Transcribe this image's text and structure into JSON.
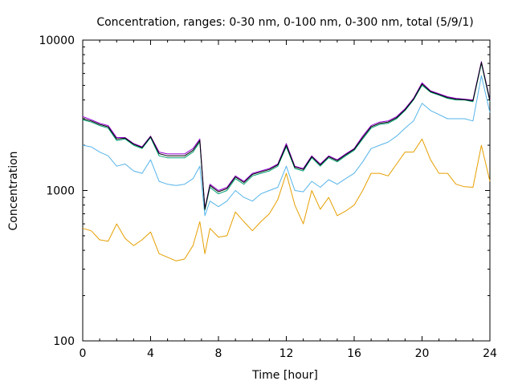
{
  "chart_data": {
    "type": "line",
    "title": "Concentration, ranges: 0-30 nm, 0-100 nm, 0-300 nm, total (5/9/1)",
    "xlabel": "Time [hour]",
    "ylabel": "Concentration",
    "xlim": [
      0,
      24
    ],
    "ylim": [
      100,
      10000
    ],
    "yscale": "log",
    "grid": false,
    "legend": "none",
    "x_ticks": [
      0,
      4,
      8,
      12,
      16,
      20,
      24
    ],
    "x_tick_labels": [
      "0",
      "4",
      "8",
      "12",
      "16",
      "20",
      "24"
    ],
    "y_ticks": [
      100,
      1000,
      10000
    ],
    "y_tick_labels": [
      "100",
      "1000",
      "10000"
    ],
    "x": [
      0.0,
      0.5,
      1.0,
      1.5,
      2.0,
      2.5,
      3.0,
      3.5,
      4.0,
      4.5,
      5.0,
      5.5,
      6.0,
      6.5,
      6.9,
      7.2,
      7.5,
      8.0,
      8.5,
      9.0,
      9.5,
      10.0,
      10.5,
      11.0,
      11.5,
      12.0,
      12.5,
      13.0,
      13.5,
      14.0,
      14.5,
      15.0,
      15.5,
      16.0,
      16.5,
      17.0,
      17.5,
      18.0,
      18.5,
      19.0,
      19.5,
      20.0,
      20.5,
      21.0,
      21.5,
      22.0,
      22.5,
      23.0,
      23.5,
      24.0
    ],
    "series": [
      {
        "color": "#e69f00",
        "values": [
          560,
          540,
          470,
          460,
          600,
          480,
          430,
          470,
          530,
          380,
          360,
          340,
          350,
          430,
          620,
          380,
          560,
          490,
          500,
          720,
          620,
          540,
          620,
          700,
          870,
          1300,
          800,
          600,
          1000,
          750,
          900,
          680,
          730,
          800,
          1000,
          1300,
          1300,
          1250,
          1500,
          1800,
          1800,
          2200,
          1600,
          1300,
          1300,
          1100,
          1060,
          1050,
          2000,
          1150
        ]
      },
      {
        "color": "#56b4e9",
        "values": [
          2000,
          1950,
          1800,
          1700,
          1450,
          1500,
          1350,
          1300,
          1600,
          1150,
          1100,
          1080,
          1100,
          1200,
          1450,
          680,
          850,
          780,
          850,
          1000,
          900,
          850,
          950,
          1000,
          1050,
          1450,
          1000,
          980,
          1150,
          1050,
          1180,
          1100,
          1200,
          1300,
          1550,
          1900,
          2000,
          2100,
          2300,
          2600,
          2900,
          3800,
          3400,
          3200,
          3000,
          3000,
          3000,
          2900,
          5800,
          3300
        ]
      },
      {
        "color": "#009e73",
        "values": [
          2950,
          2850,
          2700,
          2600,
          2150,
          2200,
          2000,
          1900,
          2250,
          1700,
          1650,
          1650,
          1650,
          1800,
          2100,
          740,
          1050,
          950,
          1000,
          1200,
          1100,
          1250,
          1300,
          1350,
          1450,
          1950,
          1400,
          1350,
          1650,
          1450,
          1650,
          1550,
          1700,
          1850,
          2200,
          2600,
          2750,
          2800,
          3000,
          3400,
          4000,
          5000,
          4500,
          4300,
          4100,
          4000,
          4000,
          3900,
          7000,
          3900
        ]
      },
      {
        "color": "#9400d3",
        "values": [
          3100,
          2950,
          2800,
          2700,
          2250,
          2250,
          2050,
          1950,
          2300,
          1800,
          1750,
          1750,
          1750,
          1900,
          2200,
          760,
          1100,
          1000,
          1050,
          1250,
          1150,
          1300,
          1350,
          1400,
          1500,
          2050,
          1450,
          1400,
          1700,
          1500,
          1700,
          1600,
          1750,
          1900,
          2300,
          2700,
          2850,
          2900,
          3100,
          3500,
          4100,
          5200,
          4600,
          4400,
          4200,
          4100,
          4050,
          4000,
          7200,
          4000
        ]
      },
      {
        "color": "#000000",
        "values": [
          3000,
          2900,
          2750,
          2650,
          2200,
          2230,
          2030,
          1930,
          2280,
          1760,
          1700,
          1700,
          1700,
          1850,
          2150,
          750,
          1080,
          980,
          1030,
          1230,
          1130,
          1280,
          1330,
          1380,
          1480,
          2000,
          1430,
          1380,
          1680,
          1480,
          1680,
          1580,
          1730,
          1880,
          2250,
          2650,
          2800,
          2850,
          3050,
          3450,
          4050,
          5100,
          4550,
          4350,
          4150,
          4050,
          4020,
          3950,
          7100,
          3950
        ]
      }
    ]
  }
}
